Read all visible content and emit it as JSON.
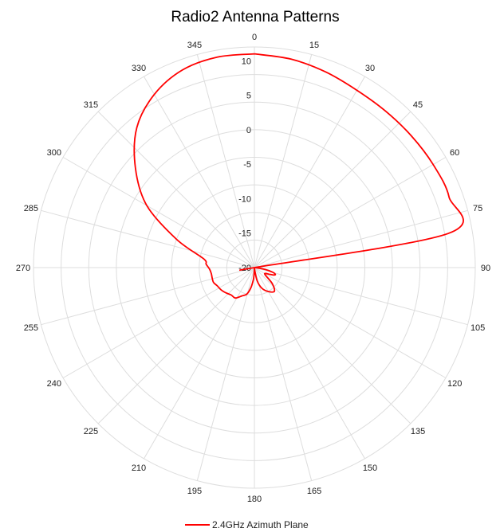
{
  "chart_data": {
    "type": "polar-line",
    "title": "Radio2 Antenna Patterns",
    "angular_ticks": [
      "0",
      "15",
      "30",
      "45",
      "60",
      "75",
      "90",
      "105",
      "120",
      "135",
      "150",
      "165",
      "180",
      "195",
      "210",
      "225",
      "240",
      "255",
      "270",
      "285",
      "300",
      "315",
      "330",
      "345"
    ],
    "radial_ticks": [
      "10",
      "5",
      "0",
      "-5",
      "-10",
      "-15",
      "-20"
    ],
    "r_range": [
      -20,
      12
    ],
    "angle_direction": "clockwise",
    "zero_location": "top",
    "grid": true,
    "legend_placement": "bottom-center",
    "series": [
      {
        "name": "2.4GHz Azimuth Plane",
        "color": "#ff0000",
        "theta": [
          0,
          10,
          20,
          30,
          40,
          50,
          60,
          70,
          80,
          90,
          92,
          96,
          100,
          104,
          108,
          111,
          114,
          118,
          124,
          132,
          140,
          150,
          160,
          168,
          172,
          176,
          178,
          180,
          182,
          184,
          186,
          190,
          196,
          204,
          212,
          220,
          228,
          236,
          244,
          250,
          256,
          262,
          268,
          274,
          280,
          290,
          300,
          310,
          320,
          330,
          340,
          350,
          360
        ],
        "r": [
          11,
          10.7,
          10.2,
          9.7,
          9.6,
          9.7,
          9.9,
          10,
          8.5,
          -20.5,
          -20.4,
          -19.7,
          -18.4,
          -17.3,
          -16.8,
          -17,
          -17.6,
          -18.2,
          -18.1,
          -16.5,
          -15.5,
          -16,
          -16.8,
          -18,
          -19.5,
          -20.5,
          -19.3,
          -20.3,
          -19.5,
          -18.5,
          -18,
          -17,
          -16,
          -15.5,
          -14.8,
          -14.8,
          -14.5,
          -14.2,
          -14,
          -13.7,
          -13.7,
          -13.7,
          -13.5,
          -13,
          -12.5,
          -8,
          -2,
          2.5,
          6.5,
          9,
          10.5,
          11,
          11
        ]
      }
    ]
  },
  "colors": {
    "grid": "#dddddd",
    "axis_text": "#222222",
    "series": "#ff0000"
  }
}
